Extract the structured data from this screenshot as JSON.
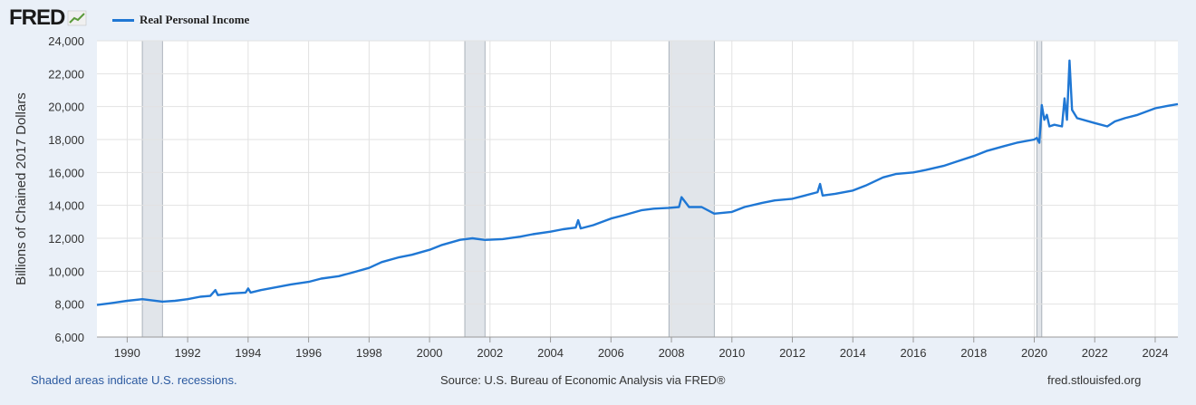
{
  "header": {
    "logo_text": "FRED",
    "logo_icon": "line-chart-icon"
  },
  "chart_data": {
    "type": "line",
    "title": "",
    "ylabel": "Billions of Chained 2017 Dollars",
    "xlabel": "",
    "ylim": [
      6000,
      24000
    ],
    "xlim": [
      "1989-01",
      "2024-10"
    ],
    "grid": true,
    "legend_position": "top-left",
    "yticks": [
      6000,
      8000,
      10000,
      12000,
      14000,
      16000,
      18000,
      20000,
      22000,
      24000
    ],
    "ytick_labels": [
      "6,000",
      "8,000",
      "10,000",
      "12,000",
      "14,000",
      "16,000",
      "18,000",
      "20,000",
      "22,000",
      "24,000"
    ],
    "xtick_labels": [
      "1990",
      "1992",
      "1994",
      "1996",
      "1998",
      "2000",
      "2002",
      "2004",
      "2006",
      "2008",
      "2010",
      "2012",
      "2014",
      "2016",
      "2018",
      "2020",
      "2022",
      "2024"
    ],
    "recessions": [
      [
        "1990-07",
        "1991-03"
      ],
      [
        "2001-03",
        "2001-11"
      ],
      [
        "2007-12",
        "2009-06"
      ],
      [
        "2020-02",
        "2020-04"
      ]
    ],
    "series": [
      {
        "name": "Real Personal Income",
        "color": "#1f77d4",
        "points": [
          [
            "1989-01",
            7950
          ],
          [
            "1989-06",
            8050
          ],
          [
            "1990-01",
            8200
          ],
          [
            "1990-07",
            8300
          ],
          [
            "1991-03",
            8150
          ],
          [
            "1991-08",
            8200
          ],
          [
            "1992-01",
            8300
          ],
          [
            "1992-06",
            8450
          ],
          [
            "1992-10",
            8500
          ],
          [
            "1992-12",
            8850
          ],
          [
            "1993-01",
            8550
          ],
          [
            "1993-06",
            8650
          ],
          [
            "1993-12",
            8700
          ],
          [
            "1994-01",
            8950
          ],
          [
            "1994-02",
            8700
          ],
          [
            "1994-06",
            8850
          ],
          [
            "1995-01",
            9050
          ],
          [
            "1995-06",
            9200
          ],
          [
            "1996-01",
            9350
          ],
          [
            "1996-06",
            9550
          ],
          [
            "1997-01",
            9700
          ],
          [
            "1997-06",
            9900
          ],
          [
            "1998-01",
            10200
          ],
          [
            "1998-06",
            10550
          ],
          [
            "1999-01",
            10850
          ],
          [
            "1999-06",
            11000
          ],
          [
            "2000-01",
            11300
          ],
          [
            "2000-06",
            11600
          ],
          [
            "2001-01",
            11900
          ],
          [
            "2001-06",
            12000
          ],
          [
            "2001-11",
            11900
          ],
          [
            "2002-06",
            11950
          ],
          [
            "2003-01",
            12100
          ],
          [
            "2003-06",
            12250
          ],
          [
            "2004-01",
            12400
          ],
          [
            "2004-06",
            12550
          ],
          [
            "2004-11",
            12650
          ],
          [
            "2004-12",
            13100
          ],
          [
            "2005-01",
            12600
          ],
          [
            "2005-06",
            12800
          ],
          [
            "2006-01",
            13200
          ],
          [
            "2006-06",
            13400
          ],
          [
            "2007-01",
            13700
          ],
          [
            "2007-06",
            13800
          ],
          [
            "2007-12",
            13850
          ],
          [
            "2008-04",
            13900
          ],
          [
            "2008-05",
            14500
          ],
          [
            "2008-08",
            13900
          ],
          [
            "2009-01",
            13900
          ],
          [
            "2009-06",
            13500
          ],
          [
            "2010-01",
            13600
          ],
          [
            "2010-06",
            13900
          ],
          [
            "2011-01",
            14150
          ],
          [
            "2011-06",
            14300
          ],
          [
            "2012-01",
            14400
          ],
          [
            "2012-06",
            14600
          ],
          [
            "2012-11",
            14800
          ],
          [
            "2012-12",
            15300
          ],
          [
            "2013-01",
            14600
          ],
          [
            "2013-06",
            14700
          ],
          [
            "2014-01",
            14900
          ],
          [
            "2014-06",
            15200
          ],
          [
            "2015-01",
            15700
          ],
          [
            "2015-06",
            15900
          ],
          [
            "2016-01",
            16000
          ],
          [
            "2016-06",
            16150
          ],
          [
            "2017-01",
            16400
          ],
          [
            "2017-06",
            16650
          ],
          [
            "2018-01",
            17000
          ],
          [
            "2018-06",
            17300
          ],
          [
            "2019-01",
            17600
          ],
          [
            "2019-06",
            17800
          ],
          [
            "2020-01",
            18000
          ],
          [
            "2020-02",
            18100
          ],
          [
            "2020-03",
            17800
          ],
          [
            "2020-04",
            20100
          ],
          [
            "2020-05",
            19200
          ],
          [
            "2020-06",
            19500
          ],
          [
            "2020-07",
            18800
          ],
          [
            "2020-09",
            18900
          ],
          [
            "2020-12",
            18800
          ],
          [
            "2021-01",
            20500
          ],
          [
            "2021-02",
            19200
          ],
          [
            "2021-03",
            22800
          ],
          [
            "2021-04",
            19800
          ],
          [
            "2021-06",
            19300
          ],
          [
            "2022-01",
            19000
          ],
          [
            "2022-06",
            18800
          ],
          [
            "2022-09",
            19100
          ],
          [
            "2023-01",
            19300
          ],
          [
            "2023-06",
            19500
          ],
          [
            "2024-01",
            19900
          ],
          [
            "2024-06",
            20050
          ],
          [
            "2024-10",
            20150
          ]
        ]
      }
    ]
  },
  "footer": {
    "recession_note": "Shaded areas indicate U.S. recessions.",
    "source": "Source: U.S. Bureau of Economic Analysis via FRED®",
    "site": "fred.stlouisfed.org"
  }
}
